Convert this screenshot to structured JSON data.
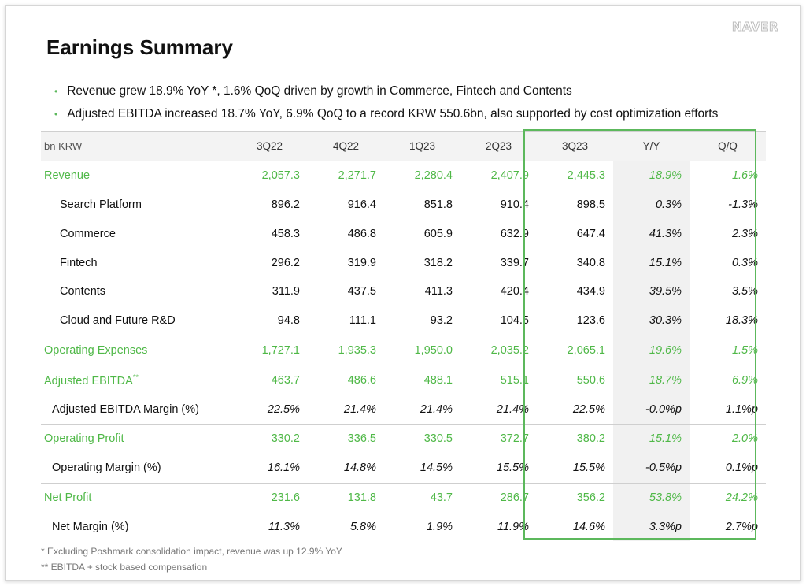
{
  "logo": "NAVER",
  "title": "Earnings Summary",
  "bullets": [
    "Revenue grew 18.9% YoY *, 1.6% QoQ driven by growth in Commerce, Fintech and Contents",
    "Adjusted EBITDA increased 18.7% YoY, 6.9% QoQ to a record KRW 550.6bn, also supported by cost optimization efforts"
  ],
  "table": {
    "headers": [
      "bn KRW",
      "3Q22",
      "4Q22",
      "1Q23",
      "2Q23",
      "3Q23",
      "Y/Y",
      "Q/Q"
    ],
    "rows": [
      {
        "label": "Revenue",
        "cells": [
          "2,057.3",
          "2,271.7",
          "2,280.4",
          "2,407.9",
          "2,445.3",
          "18.9%",
          "1.6%"
        ]
      },
      {
        "label": "Search Platform",
        "cells": [
          "896.2",
          "916.4",
          "851.8",
          "910.4",
          "898.5",
          "0.3%",
          "-1.3%"
        ]
      },
      {
        "label": "Commerce",
        "cells": [
          "458.3",
          "486.8",
          "605.9",
          "632.9",
          "647.4",
          "41.3%",
          "2.3%"
        ]
      },
      {
        "label": "Fintech",
        "cells": [
          "296.2",
          "319.9",
          "318.2",
          "339.7",
          "340.8",
          "15.1%",
          "0.3%"
        ]
      },
      {
        "label": "Contents",
        "cells": [
          "311.9",
          "437.5",
          "411.3",
          "420.4",
          "434.9",
          "39.5%",
          "3.5%"
        ]
      },
      {
        "label": "Cloud and Future R&D",
        "cells": [
          "94.8",
          "111.1",
          "93.2",
          "104.5",
          "123.6",
          "30.3%",
          "18.3%"
        ]
      },
      {
        "label": "Operating Expenses",
        "cells": [
          "1,727.1",
          "1,935.3",
          "1,950.0",
          "2,035.2",
          "2,065.1",
          "19.6%",
          "1.5%"
        ]
      },
      {
        "label": "Adjusted EBITDA",
        "sup": "**",
        "cells": [
          "463.7",
          "486.6",
          "488.1",
          "515.1",
          "550.6",
          "18.7%",
          "6.9%"
        ]
      },
      {
        "label": "Adjusted EBITDA Margin (%)",
        "cells": [
          "22.5%",
          "21.4%",
          "21.4%",
          "21.4%",
          "22.5%",
          "-0.0%p",
          "1.1%p"
        ]
      },
      {
        "label": "Operating Profit",
        "cells": [
          "330.2",
          "336.5",
          "330.5",
          "372.7",
          "380.2",
          "15.1%",
          "2.0%"
        ]
      },
      {
        "label": "Operating Margin (%)",
        "cells": [
          "16.1%",
          "14.8%",
          "14.5%",
          "15.5%",
          "15.5%",
          "-0.5%p",
          "0.1%p"
        ]
      },
      {
        "label": "Net Profit",
        "cells": [
          "231.6",
          "131.8",
          "43.7",
          "286.7",
          "356.2",
          "53.8%",
          "24.2%"
        ]
      },
      {
        "label": "Net Margin (%)",
        "cells": [
          "11.3%",
          "5.8%",
          "1.9%",
          "11.9%",
          "14.6%",
          "3.3%p",
          "2.7%p"
        ]
      }
    ]
  },
  "footnotes": [
    "* Excluding Poshmark consolidation impact, revenue was up 12.9% YoY",
    "** EBITDA + stock based compensation"
  ],
  "colors": {
    "accent": "#5cb85c",
    "green_text": "#4fb847",
    "highlight_bg": "#f1f1f1"
  }
}
